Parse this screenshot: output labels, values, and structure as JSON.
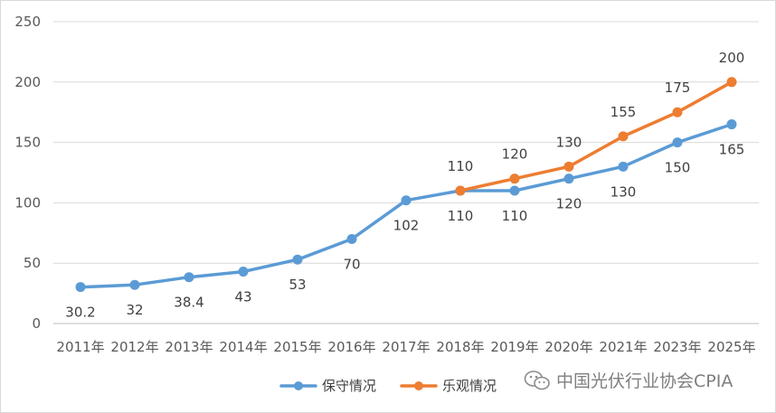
{
  "chart_data": {
    "type": "line",
    "categories": [
      "2011年",
      "2012年",
      "2013年",
      "2014年",
      "2015年",
      "2016年",
      "2017年",
      "2018年",
      "2019年",
      "2020年",
      "2021年",
      "2023年",
      "2025年"
    ],
    "ylim": [
      0,
      250
    ],
    "yticks": [
      0,
      50,
      100,
      150,
      200,
      250
    ],
    "grid": true,
    "legend": "bottom",
    "series": [
      {
        "name": "保守情况",
        "color": "#5b9bd5",
        "values": [
          30.2,
          32,
          38.4,
          43,
          53,
          70,
          102,
          110,
          110,
          120,
          130,
          150,
          165
        ],
        "labels": [
          "30.2",
          "32",
          "38.4",
          "43",
          "53",
          "70",
          "102",
          "110",
          "110",
          "120",
          "130",
          "150",
          "165"
        ]
      },
      {
        "name": "乐观情况",
        "color": "#ed7d31",
        "values": [
          null,
          null,
          null,
          null,
          null,
          null,
          null,
          110,
          120,
          130,
          155,
          175,
          200
        ],
        "labels": [
          null,
          null,
          null,
          null,
          null,
          null,
          null,
          "110",
          "120",
          "130",
          "155",
          "175",
          "200"
        ]
      }
    ]
  },
  "watermark": {
    "text": "中国光伏行业协会CPIA",
    "icon": "wechat-icon"
  }
}
